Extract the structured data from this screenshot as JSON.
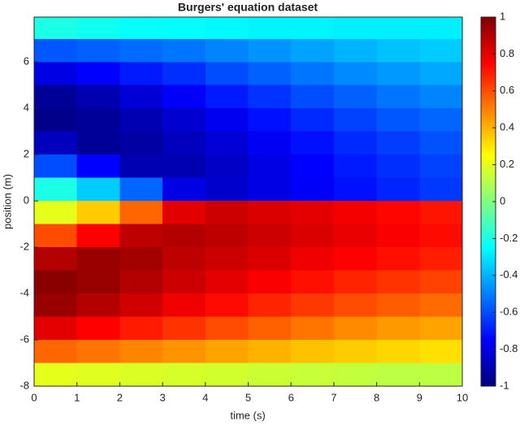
{
  "chart_data": {
    "type": "heatmap",
    "title": "Burgers' equation dataset",
    "x_label": "time (s)",
    "y_label": "position (m)",
    "x": [
      0.5,
      1.5,
      2.5,
      3.5,
      4.5,
      5.5,
      6.5,
      7.5,
      8.5,
      9.5
    ],
    "y": [
      7.5,
      6.5,
      5.5,
      4.5,
      3.5,
      2.5,
      1.5,
      0.5,
      -0.5,
      -1.5,
      -2.5,
      -3.5,
      -4.5,
      -5.5,
      -6.5,
      -7.5
    ],
    "z": [
      [
        -0.2,
        -0.22,
        -0.24,
        -0.25,
        -0.26,
        -0.27,
        -0.27,
        -0.28,
        -0.28,
        -0.28
      ],
      [
        -0.58,
        -0.56,
        -0.54,
        -0.52,
        -0.49,
        -0.46,
        -0.43,
        -0.4,
        -0.37,
        -0.35
      ],
      [
        -0.8,
        -0.75,
        -0.7,
        -0.66,
        -0.6,
        -0.56,
        -0.52,
        -0.48,
        -0.45,
        -0.42
      ],
      [
        -0.95,
        -0.9,
        -0.83,
        -0.76,
        -0.7,
        -0.65,
        -0.6,
        -0.56,
        -0.52,
        -0.49
      ],
      [
        -0.98,
        -0.95,
        -0.9,
        -0.84,
        -0.78,
        -0.72,
        -0.67,
        -0.62,
        -0.58,
        -0.55
      ],
      [
        -0.88,
        -0.95,
        -0.93,
        -0.88,
        -0.83,
        -0.77,
        -0.72,
        -0.67,
        -0.63,
        -0.59
      ],
      [
        -0.6,
        -0.75,
        -0.9,
        -0.9,
        -0.86,
        -0.8,
        -0.75,
        -0.7,
        -0.66,
        -0.62
      ],
      [
        -0.2,
        -0.35,
        -0.55,
        -0.8,
        -0.85,
        -0.8,
        -0.76,
        -0.72,
        -0.68,
        -0.64
      ],
      [
        0.2,
        0.35,
        0.55,
        0.8,
        0.85,
        0.82,
        0.8,
        0.77,
        0.74,
        0.71
      ],
      [
        0.6,
        0.75,
        0.88,
        0.9,
        0.88,
        0.85,
        0.82,
        0.79,
        0.76,
        0.73
      ],
      [
        0.9,
        0.95,
        0.93,
        0.88,
        0.85,
        0.82,
        0.78,
        0.75,
        0.72,
        0.69
      ],
      [
        0.98,
        0.95,
        0.9,
        0.85,
        0.8,
        0.76,
        0.72,
        0.68,
        0.65,
        0.62
      ],
      [
        0.95,
        0.9,
        0.84,
        0.78,
        0.73,
        0.68,
        0.64,
        0.6,
        0.57,
        0.54
      ],
      [
        0.8,
        0.75,
        0.7,
        0.65,
        0.6,
        0.56,
        0.52,
        0.48,
        0.45,
        0.43
      ],
      [
        0.55,
        0.52,
        0.49,
        0.46,
        0.43,
        0.4,
        0.37,
        0.35,
        0.33,
        0.31
      ],
      [
        0.2,
        0.19,
        0.18,
        0.17,
        0.16,
        0.15,
        0.14,
        0.13,
        0.12,
        0.12
      ]
    ],
    "xlim": [
      0,
      10
    ],
    "xticks": [
      0,
      1,
      2,
      3,
      4,
      5,
      6,
      7,
      8,
      9,
      10
    ],
    "ylim": [
      -8,
      7.94
    ],
    "yticks": [
      -8,
      -6,
      -4,
      -2,
      0,
      2,
      4,
      6
    ],
    "colormap": "jet",
    "clim": [
      -1,
      1
    ],
    "cticks": [
      -1,
      -0.8,
      -0.6,
      -0.4,
      -0.2,
      0,
      0.2,
      0.4,
      0.6,
      0.8,
      1
    ]
  }
}
